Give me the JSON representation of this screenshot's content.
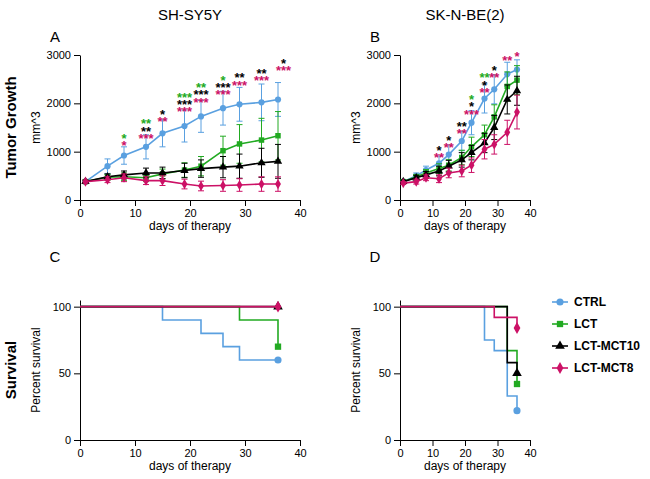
{
  "chart_data": [
    {
      "type": "line",
      "title": "SH-SY5Y",
      "panel_label": "A",
      "row_label": "Tumor Growth",
      "x_label": "days of therapy",
      "y_label": "mm^3",
      "x": [
        1,
        5,
        8,
        12,
        15,
        19,
        22,
        26,
        29,
        33,
        36
      ],
      "xlim": [
        0,
        40
      ],
      "xticks": [
        0,
        10,
        20,
        30,
        40
      ],
      "ylim": [
        0,
        3000
      ],
      "yticks": [
        0,
        1000,
        2000,
        3000
      ],
      "series": [
        {
          "color": "#5aa0e0",
          "marker": "circle",
          "values": [
            380,
            700,
            920,
            1100,
            1380,
            1530,
            1730,
            1900,
            1980,
            2020,
            2080
          ],
          "errors": [
            30,
            150,
            180,
            250,
            280,
            330,
            330,
            350,
            350,
            380,
            350
          ]
        },
        {
          "color": "#22aa22",
          "marker": "square",
          "values": [
            380,
            470,
            480,
            460,
            540,
            620,
            700,
            1020,
            1160,
            1240,
            1330
          ],
          "errors": [
            30,
            60,
            80,
            80,
            100,
            150,
            200,
            300,
            400,
            450,
            500
          ]
        },
        {
          "color": "#000000",
          "marker": "triangle",
          "values": [
            380,
            480,
            520,
            560,
            560,
            610,
            650,
            680,
            700,
            770,
            800
          ],
          "errors": [
            30,
            60,
            80,
            100,
            120,
            150,
            180,
            220,
            250,
            300,
            350
          ]
        },
        {
          "color": "#cc1166",
          "marker": "diamond",
          "values": [
            380,
            420,
            460,
            400,
            400,
            330,
            290,
            300,
            310,
            330,
            330
          ],
          "errors": [
            30,
            60,
            80,
            80,
            100,
            100,
            100,
            120,
            130,
            150,
            150
          ]
        }
      ],
      "annotations": [
        {
          "x": 8,
          "y": 1350,
          "text": "*",
          "color": "#22aa22"
        },
        {
          "x": 8,
          "y": 1200,
          "text": "*",
          "color": "#cc1166"
        },
        {
          "x": 12,
          "y": 1650,
          "text": "**",
          "color": "#22aa22"
        },
        {
          "x": 12,
          "y": 1500,
          "text": "**",
          "color": "#000000"
        },
        {
          "x": 12,
          "y": 1350,
          "text": "***",
          "color": "#cc1166"
        },
        {
          "x": 15,
          "y": 1850,
          "text": "*",
          "color": "#000000"
        },
        {
          "x": 15,
          "y": 1700,
          "text": "**",
          "color": "#cc1166"
        },
        {
          "x": 19,
          "y": 2200,
          "text": "***",
          "color": "#22aa22"
        },
        {
          "x": 19,
          "y": 2050,
          "text": "***",
          "color": "#000000"
        },
        {
          "x": 19,
          "y": 1900,
          "text": "***",
          "color": "#cc1166"
        },
        {
          "x": 22,
          "y": 2400,
          "text": "**",
          "color": "#22aa22"
        },
        {
          "x": 22,
          "y": 2250,
          "text": "***",
          "color": "#000000"
        },
        {
          "x": 22,
          "y": 2100,
          "text": "***",
          "color": "#cc1166"
        },
        {
          "x": 26,
          "y": 2550,
          "text": "*",
          "color": "#22aa22"
        },
        {
          "x": 26,
          "y": 2400,
          "text": "***",
          "color": "#000000"
        },
        {
          "x": 26,
          "y": 2250,
          "text": "***",
          "color": "#cc1166"
        },
        {
          "x": 29,
          "y": 2600,
          "text": "**",
          "color": "#000000"
        },
        {
          "x": 29,
          "y": 2450,
          "text": "***",
          "color": "#cc1166"
        },
        {
          "x": 33,
          "y": 2700,
          "text": "**",
          "color": "#000000"
        },
        {
          "x": 33,
          "y": 2550,
          "text": "***",
          "color": "#cc1166"
        },
        {
          "x": 37,
          "y": 2900,
          "text": "*",
          "color": "#000000"
        },
        {
          "x": 37,
          "y": 2750,
          "text": "***",
          "color": "#cc1166"
        }
      ]
    },
    {
      "type": "line",
      "title": "SK-N-BE(2)",
      "panel_label": "B",
      "x_label": "days of therapy",
      "y_label": "mm^3",
      "x": [
        1,
        5,
        8,
        12,
        15,
        19,
        22,
        26,
        29,
        33,
        36
      ],
      "xlim": [
        0,
        40
      ],
      "xticks": [
        0,
        10,
        20,
        30,
        40
      ],
      "ylim": [
        0,
        3000
      ],
      "yticks": [
        0,
        1000,
        2000,
        3000
      ],
      "series": [
        {
          "color": "#5aa0e0",
          "marker": "circle",
          "values": [
            380,
            500,
            620,
            760,
            940,
            1220,
            1600,
            2100,
            2290,
            2600,
            2700
          ],
          "errors": [
            30,
            60,
            80,
            150,
            200,
            200,
            250,
            300,
            300,
            250,
            200
          ]
        },
        {
          "color": "#22aa22",
          "marker": "square",
          "values": [
            380,
            480,
            560,
            650,
            720,
            880,
            1100,
            1350,
            1720,
            2350,
            2480
          ],
          "errors": [
            30,
            50,
            70,
            100,
            120,
            150,
            200,
            200,
            250,
            300,
            300
          ]
        },
        {
          "color": "#000000",
          "marker": "triangle",
          "values": [
            380,
            460,
            520,
            600,
            700,
            830,
            980,
            1180,
            1500,
            2080,
            2260
          ],
          "errors": [
            30,
            50,
            70,
            100,
            120,
            150,
            150,
            200,
            250,
            300,
            300
          ]
        },
        {
          "color": "#cc1166",
          "marker": "diamond",
          "values": [
            350,
            380,
            460,
            440,
            560,
            600,
            720,
            1050,
            1150,
            1400,
            1820
          ],
          "errors": [
            30,
            50,
            60,
            80,
            100,
            120,
            150,
            200,
            200,
            250,
            350
          ]
        }
      ],
      "annotations": [
        {
          "x": 12,
          "y": 1100,
          "text": "*",
          "color": "#000000"
        },
        {
          "x": 12,
          "y": 950,
          "text": "**",
          "color": "#cc1166"
        },
        {
          "x": 15,
          "y": 1300,
          "text": "*",
          "color": "#000000"
        },
        {
          "x": 15,
          "y": 1150,
          "text": "**",
          "color": "#cc1166"
        },
        {
          "x": 19,
          "y": 1600,
          "text": "**",
          "color": "#000000"
        },
        {
          "x": 19,
          "y": 1450,
          "text": "**",
          "color": "#cc1166"
        },
        {
          "x": 22,
          "y": 2150,
          "text": "*",
          "color": "#22aa22"
        },
        {
          "x": 22,
          "y": 2000,
          "text": "*",
          "color": "#000000"
        },
        {
          "x": 22,
          "y": 1850,
          "text": "***",
          "color": "#cc1166"
        },
        {
          "x": 26,
          "y": 2600,
          "text": "**",
          "color": "#22aa22"
        },
        {
          "x": 26,
          "y": 2450,
          "text": "*",
          "color": "#000000"
        },
        {
          "x": 26,
          "y": 2300,
          "text": "**",
          "color": "#cc1166"
        },
        {
          "x": 29,
          "y": 2750,
          "text": "*",
          "color": "#000000"
        },
        {
          "x": 29,
          "y": 2600,
          "text": "**",
          "color": "#cc1166"
        },
        {
          "x": 33,
          "y": 2950,
          "text": "**",
          "color": "#cc1166"
        },
        {
          "x": 36,
          "y": 3050,
          "text": "*",
          "color": "#cc1166"
        }
      ]
    },
    {
      "type": "step",
      "panel_label": "C",
      "row_label": "Survival",
      "x_label": "days of therapy",
      "y_label": "Percent survival",
      "xlim": [
        0,
        40
      ],
      "xticks": [
        0,
        10,
        20,
        30,
        40
      ],
      "ylim": [
        0,
        105
      ],
      "yticks": [
        0,
        50,
        100
      ],
      "series": [
        {
          "color": "#5aa0e0",
          "marker": "circle",
          "x": [
            0,
            15,
            22,
            26,
            29,
            36
          ],
          "values": [
            100,
            90,
            80,
            70,
            60,
            60
          ]
        },
        {
          "color": "#22aa22",
          "marker": "square",
          "x": [
            0,
            29,
            36
          ],
          "values": [
            100,
            90,
            70
          ]
        },
        {
          "color": "#000000",
          "marker": "triangle",
          "x": [
            0,
            36
          ],
          "values": [
            100,
            100
          ]
        },
        {
          "color": "#cc1166",
          "marker": "diamond",
          "x": [
            0,
            36
          ],
          "values": [
            100,
            100
          ]
        }
      ]
    },
    {
      "type": "step",
      "panel_label": "D",
      "legend": "right",
      "x_label": "days of therapy",
      "y_label": "Percent survival",
      "xlim": [
        0,
        40
      ],
      "xticks": [
        0,
        10,
        20,
        30,
        40
      ],
      "ylim": [
        0,
        105
      ],
      "yticks": [
        0,
        50,
        100
      ],
      "series": [
        {
          "name": "CTRL",
          "color": "#5aa0e0",
          "marker": "circle",
          "x": [
            0,
            26,
            29,
            33,
            36
          ],
          "values": [
            100,
            75,
            67,
            33,
            22
          ]
        },
        {
          "name": "LCT",
          "color": "#22aa22",
          "marker": "square",
          "x": [
            0,
            33,
            36
          ],
          "values": [
            100,
            67,
            42
          ]
        },
        {
          "name": "LCT-MCT10",
          "color": "#000000",
          "marker": "triangle",
          "x": [
            0,
            33,
            36
          ],
          "values": [
            100,
            58,
            50
          ]
        },
        {
          "name": "LCT-MCT8",
          "color": "#cc1166",
          "marker": "diamond",
          "x": [
            0,
            29,
            36
          ],
          "values": [
            100,
            92,
            84
          ]
        }
      ]
    }
  ]
}
